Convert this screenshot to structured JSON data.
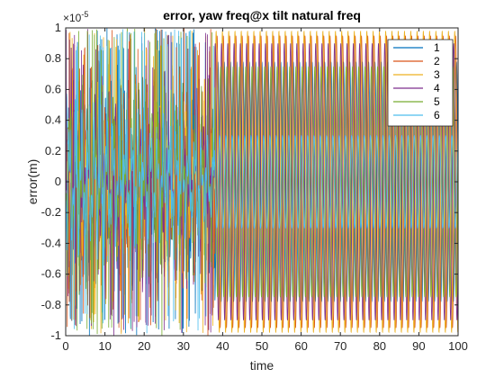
{
  "chart_data": {
    "type": "line",
    "title": "error, yaw freq@x tilt natural freq",
    "xlabel": "time",
    "ylabel": "error(m)",
    "xlim": [
      0,
      100
    ],
    "ylim": [
      -1e-05,
      1e-05
    ],
    "x_ticks": [
      0,
      10,
      20,
      30,
      40,
      50,
      60,
      70,
      80,
      90,
      100
    ],
    "y_ticks": [
      -1,
      -0.8,
      -0.6,
      -0.4,
      -0.2,
      0,
      0.2,
      0.4,
      0.6,
      0.8,
      1
    ],
    "y_tick_labels": [
      "-1",
      "-0.8",
      "-0.6",
      "-0.4",
      "-0.2",
      "0",
      "0.2",
      "0.4",
      "0.6",
      "0.8",
      "1"
    ],
    "y_exponent": "×10",
    "y_exponent_power": "-5",
    "grid": false,
    "legend_position": "top-right",
    "series": [
      {
        "name": "1",
        "color": "#0072BD",
        "period": 1.6,
        "envelope": [
          {
            "t": 0,
            "a": 0.85
          },
          {
            "t": 30,
            "a": 0.75
          },
          {
            "t": 38,
            "a": 0.78
          },
          {
            "t": 100,
            "a": 0.78
          }
        ]
      },
      {
        "name": "2",
        "color": "#D95319",
        "period": 1.6,
        "envelope": [
          {
            "t": 0,
            "a": 0.9
          },
          {
            "t": 30,
            "a": 0.85
          },
          {
            "t": 38,
            "a": 0.95
          },
          {
            "t": 100,
            "a": 0.95
          }
        ]
      },
      {
        "name": "3",
        "color": "#EDB120",
        "period": 1.6,
        "envelope": [
          {
            "t": 0,
            "a": 0.95
          },
          {
            "t": 30,
            "a": 0.9
          },
          {
            "t": 38,
            "a": 0.98
          },
          {
            "t": 100,
            "a": 0.98
          }
        ]
      },
      {
        "name": "4",
        "color": "#7E2F8E",
        "period": 1.6,
        "envelope": [
          {
            "t": 0,
            "a": 0.85
          },
          {
            "t": 30,
            "a": 0.8
          },
          {
            "t": 38,
            "a": 0.9
          },
          {
            "t": 100,
            "a": 0.9
          }
        ]
      },
      {
        "name": "5",
        "color": "#77AC30",
        "period": 1.6,
        "envelope": [
          {
            "t": 0,
            "a": 0.8
          },
          {
            "t": 30,
            "a": 0.7
          },
          {
            "t": 38,
            "a": 0.75
          },
          {
            "t": 100,
            "a": 0.75
          }
        ]
      },
      {
        "name": "6",
        "color": "#4DBEEE",
        "period": 1.6,
        "envelope": [
          {
            "t": 0,
            "a": 0.6
          },
          {
            "t": 30,
            "a": 0.45
          },
          {
            "t": 38,
            "a": 0.3
          },
          {
            "t": 100,
            "a": 0.3
          }
        ]
      }
    ]
  }
}
